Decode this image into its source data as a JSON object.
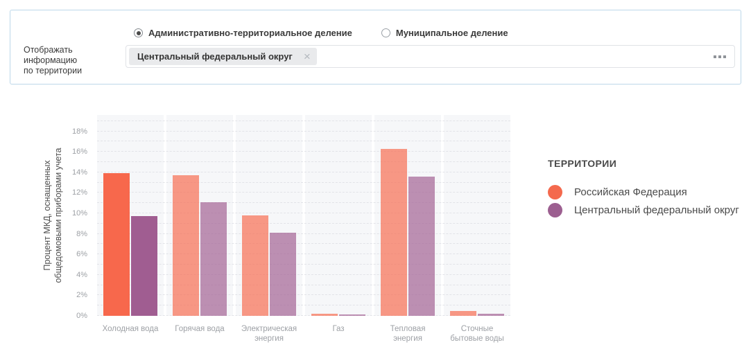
{
  "panel": {
    "radio_options": [
      {
        "label": "Административно-территориальное деление",
        "selected": true
      },
      {
        "label": "Муниципальное деление",
        "selected": false
      }
    ],
    "field_label": {
      "line1": "Отображать информацию",
      "line2": "по территории"
    },
    "territory_chip": {
      "label": "Центральный федеральный округ",
      "close_icon": "×"
    },
    "more_options_icon": "ellipsis"
  },
  "chart_data": {
    "type": "bar",
    "ylabel_line1": "Процент МКД, оснащенных",
    "ylabel_line2": "общедомовыми приборами учета",
    "ylim": [
      0,
      19.6
    ],
    "grid": {
      "step_percent": 1,
      "style": "dashed",
      "color": "#e2e3e8"
    },
    "band_color": "#f6f7f9",
    "y_ticks": [
      "0%",
      "2%",
      "4%",
      "6%",
      "8%",
      "10%",
      "12%",
      "14%",
      "16%",
      "18%"
    ],
    "categories": [
      [
        "Холодная вода"
      ],
      [
        "Горячая вода"
      ],
      [
        "Электрическая",
        "энергия"
      ],
      [
        "Газ"
      ],
      [
        "Тепловая",
        "энергия"
      ],
      [
        "Сточные",
        "бытовые воды"
      ]
    ],
    "series": [
      {
        "name": "Российская Федерация",
        "color": "#f7684c",
        "values": [
          13.9,
          13.7,
          9.8,
          0.2,
          16.3,
          0.5
        ]
      },
      {
        "name": "Центральный федеральный округ",
        "color": "#a05d91",
        "values": [
          9.7,
          11.1,
          8.1,
          0.15,
          13.6,
          0.2
        ]
      }
    ],
    "highlight_index": 0,
    "dim_opacity": 0.68
  },
  "legend": {
    "title": "ТЕРРИТОРИИ",
    "items": [
      {
        "label": "Российская Федерация",
        "color": "#f4694d"
      },
      {
        "label": "Центральный федеральный округ",
        "color": "#9c5f90"
      }
    ]
  }
}
